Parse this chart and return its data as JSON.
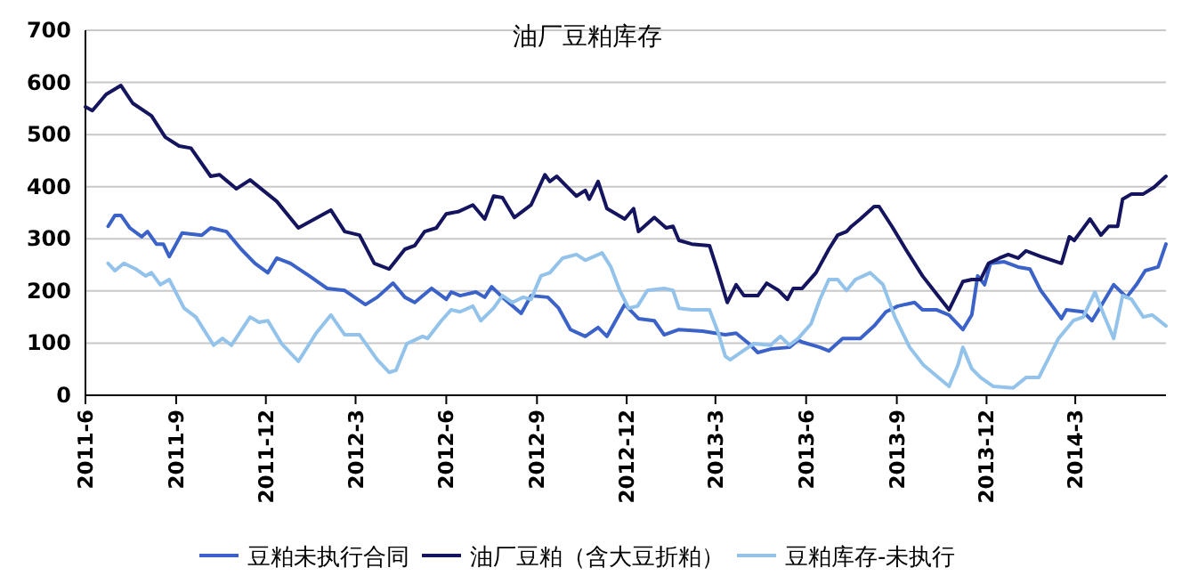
{
  "chart_data": {
    "type": "line",
    "title": "油厂豆粕库存",
    "grid": "y",
    "legend": "bottom",
    "xlim": [
      "2011-06-01",
      "2014-06-01"
    ],
    "xticks": [
      {
        "value": "2011-06",
        "label": "2011-6"
      },
      {
        "value": "2011-09",
        "label": "2011-9"
      },
      {
        "value": "2011-12",
        "label": "2011-12"
      },
      {
        "value": "2012-03",
        "label": "2012-3"
      },
      {
        "value": "2012-06",
        "label": "2012-6"
      },
      {
        "value": "2012-09",
        "label": "2012-9"
      },
      {
        "value": "2012-12",
        "label": "2012-12"
      },
      {
        "value": "2013-03",
        "label": "2013-3"
      },
      {
        "value": "2013-06",
        "label": "2013-6"
      },
      {
        "value": "2013-09",
        "label": "2013-9"
      },
      {
        "value": "2013-12",
        "label": "2013-12"
      },
      {
        "value": "2014-03",
        "label": "2014-3"
      }
    ],
    "ylim": [
      0,
      700
    ],
    "yticks": [
      0,
      100,
      200,
      300,
      400,
      500,
      600,
      700
    ],
    "series": [
      {
        "name": "豆粕未执行合同",
        "color": "#3b62c8",
        "x": [
          "2011-06-24",
          "2011-07-01",
          "2011-07-07",
          "2011-07-16",
          "2011-07-28",
          "2011-08-03",
          "2011-08-12",
          "2011-08-19",
          "2011-08-25",
          "2011-09-07",
          "2011-09-27",
          "2011-10-06",
          "2011-10-22",
          "2011-11-06",
          "2011-11-20",
          "2011-12-03",
          "2011-12-12",
          "2011-12-26",
          "2012-01-14",
          "2012-02-01",
          "2012-02-19",
          "2012-03-11",
          "2012-03-23",
          "2012-04-08",
          "2012-04-20",
          "2012-04-30",
          "2012-05-17",
          "2012-06-01",
          "2012-06-06",
          "2012-06-15",
          "2012-07-01",
          "2012-07-10",
          "2012-07-17",
          "2012-07-28",
          "2012-08-16",
          "2012-08-26",
          "2012-09-12",
          "2012-09-23",
          "2012-10-05",
          "2012-10-20",
          "2012-11-02",
          "2012-11-11",
          "2012-11-29",
          "2012-12-13",
          "2012-12-29",
          "2013-01-08",
          "2013-01-23",
          "2013-02-16",
          "2013-03-11",
          "2013-03-22",
          "2013-04-04",
          "2013-04-13",
          "2013-04-27",
          "2013-05-15",
          "2013-05-24",
          "2013-05-28",
          "2013-06-15",
          "2013-06-24",
          "2013-07-08",
          "2013-07-26",
          "2013-08-09",
          "2013-08-21",
          "2013-09-02",
          "2013-09-19",
          "2013-09-27",
          "2013-10-11",
          "2013-10-24",
          "2013-11-07",
          "2013-11-16",
          "2013-11-22",
          "2013-11-29",
          "2013-12-05",
          "2013-12-19",
          "2014-01-02",
          "2014-01-14",
          "2014-01-25",
          "2014-02-15",
          "2014-02-20",
          "2014-03-09",
          "2014-03-18",
          "2014-03-27",
          "2014-04-09",
          "2014-04-22",
          "2014-05-02",
          "2014-05-11",
          "2014-05-24",
          "2014-06-01"
        ],
        "values": [
          324,
          345,
          345,
          321,
          304,
          314,
          290,
          290,
          266,
          311,
          307,
          321,
          314,
          280,
          253,
          235,
          263,
          253,
          229,
          205,
          201,
          174,
          188,
          215,
          188,
          178,
          205,
          184,
          198,
          191,
          198,
          188,
          208,
          188,
          157,
          191,
          188,
          167,
          126,
          113,
          130,
          113,
          174,
          147,
          143,
          116,
          126,
          123,
          116,
          119,
          99,
          82,
          89,
          92,
          106,
          102,
          92,
          85,
          109,
          109,
          133,
          160,
          171,
          178,
          164,
          164,
          154,
          126,
          154,
          229,
          212,
          253,
          256,
          246,
          242,
          201,
          147,
          164,
          160,
          143,
          171,
          212,
          188,
          212,
          239,
          246,
          290
        ]
      },
      {
        "name": "油厂豆粕（含大豆折粕）",
        "color": "#14145f",
        "x": [
          "2011-06-01",
          "2011-06-08",
          "2011-06-22",
          "2011-07-07",
          "2011-07-19",
          "2011-08-07",
          "2011-08-21",
          "2011-09-04",
          "2011-09-16",
          "2011-10-06",
          "2011-10-15",
          "2011-11-01",
          "2011-11-15",
          "2011-12-12",
          "2012-01-03",
          "2012-02-05",
          "2012-02-19",
          "2012-03-05",
          "2012-03-20",
          "2012-04-04",
          "2012-04-20",
          "2012-04-30",
          "2012-05-10",
          "2012-05-22",
          "2012-06-01",
          "2012-06-13",
          "2012-06-28",
          "2012-07-10",
          "2012-07-19",
          "2012-07-28",
          "2012-08-09",
          "2012-08-21",
          "2012-08-26",
          "2012-09-09",
          "2012-09-14",
          "2012-09-21",
          "2012-10-02",
          "2012-10-11",
          "2012-10-20",
          "2012-10-24",
          "2012-11-02",
          "2012-11-11",
          "2012-11-29",
          "2012-12-08",
          "2012-12-13",
          "2012-12-29",
          "2013-01-10",
          "2013-01-17",
          "2013-01-23",
          "2013-02-05",
          "2013-02-23",
          "2013-03-02",
          "2013-03-13",
          "2013-03-22",
          "2013-03-30",
          "2013-04-13",
          "2013-04-22",
          "2013-05-04",
          "2013-05-13",
          "2013-05-19",
          "2013-05-28",
          "2013-06-11",
          "2013-06-24",
          "2013-07-03",
          "2013-07-12",
          "2013-07-17",
          "2013-07-26",
          "2013-08-09",
          "2013-08-14",
          "2013-08-27",
          "2013-09-10",
          "2013-09-27",
          "2013-10-11",
          "2013-10-24",
          "2013-11-07",
          "2013-11-16",
          "2013-11-25",
          "2013-12-03",
          "2013-12-14",
          "2013-12-23",
          "2014-01-02",
          "2014-01-10",
          "2014-01-25",
          "2014-02-15",
          "2014-02-23",
          "2014-02-28",
          "2014-03-16",
          "2014-03-27",
          "2014-04-04",
          "2014-04-13",
          "2014-04-18",
          "2014-04-27",
          "2014-05-09",
          "2014-05-20",
          "2014-06-01"
        ],
        "values": [
          553,
          546,
          577,
          594,
          560,
          536,
          495,
          478,
          474,
          420,
          423,
          396,
          413,
          372,
          321,
          355,
          314,
          307,
          253,
          242,
          280,
          287,
          314,
          321,
          348,
          352,
          365,
          338,
          382,
          379,
          341,
          358,
          365,
          423,
          410,
          420,
          399,
          382,
          393,
          376,
          410,
          358,
          338,
          358,
          314,
          341,
          321,
          324,
          297,
          290,
          287,
          246,
          178,
          212,
          191,
          191,
          215,
          201,
          184,
          205,
          205,
          235,
          280,
          307,
          314,
          324,
          338,
          362,
          362,
          324,
          280,
          229,
          195,
          164,
          218,
          222,
          222,
          253,
          263,
          270,
          263,
          277,
          266,
          253,
          304,
          297,
          338,
          307,
          324,
          324,
          376,
          386,
          386,
          399,
          420
        ]
      },
      {
        "name": "豆粕库存-未执行",
        "color": "#93c3ea",
        "x": [
          "2011-06-24",
          "2011-07-01",
          "2011-07-10",
          "2011-07-22",
          "2011-08-01",
          "2011-08-07",
          "2011-08-16",
          "2011-08-25",
          "2011-09-09",
          "2011-09-21",
          "2011-10-09",
          "2011-10-18",
          "2011-10-27",
          "2011-11-15",
          "2011-11-24",
          "2011-12-03",
          "2011-12-17",
          "2012-01-03",
          "2012-01-21",
          "2012-02-05",
          "2012-02-19",
          "2012-03-05",
          "2012-03-23",
          "2012-04-04",
          "2012-04-11",
          "2012-04-22",
          "2012-05-08",
          "2012-05-13",
          "2012-05-27",
          "2012-06-06",
          "2012-06-15",
          "2012-06-28",
          "2012-07-06",
          "2012-07-19",
          "2012-07-28",
          "2012-08-07",
          "2012-08-18",
          "2012-08-26",
          "2012-09-05",
          "2012-09-14",
          "2012-09-27",
          "2012-10-11",
          "2012-10-20",
          "2012-11-06",
          "2012-11-15",
          "2012-11-24",
          "2012-12-03",
          "2012-12-12",
          "2012-12-22",
          "2013-01-08",
          "2013-01-17",
          "2013-01-23",
          "2013-02-05",
          "2013-02-23",
          "2013-03-04",
          "2013-03-11",
          "2013-03-16",
          "2013-03-29",
          "2013-04-09",
          "2013-04-26",
          "2013-05-06",
          "2013-05-15",
          "2013-05-24",
          "2013-06-06",
          "2013-06-15",
          "2013-06-24",
          "2013-07-03",
          "2013-07-12",
          "2013-07-21",
          "2013-08-05",
          "2013-08-18",
          "2013-08-30",
          "2013-09-14",
          "2013-09-28",
          "2013-10-15",
          "2013-10-24",
          "2013-11-02",
          "2013-11-07",
          "2013-11-16",
          "2013-11-25",
          "2013-12-08",
          "2013-12-28",
          "2014-01-10",
          "2014-01-23",
          "2014-02-12",
          "2014-02-27",
          "2014-03-09",
          "2014-03-21",
          "2014-03-30",
          "2014-04-09",
          "2014-04-18",
          "2014-04-27",
          "2014-05-09",
          "2014-05-18",
          "2014-06-01"
        ],
        "values": [
          253,
          239,
          253,
          242,
          229,
          235,
          212,
          222,
          167,
          150,
          96,
          109,
          96,
          150,
          140,
          143,
          99,
          65,
          119,
          154,
          116,
          116,
          68,
          44,
          48,
          99,
          113,
          109,
          143,
          164,
          160,
          171,
          143,
          167,
          191,
          178,
          188,
          184,
          229,
          235,
          263,
          270,
          259,
          273,
          246,
          201,
          167,
          171,
          201,
          205,
          201,
          167,
          164,
          164,
          119,
          75,
          68,
          85,
          99,
          96,
          113,
          96,
          109,
          137,
          184,
          222,
          222,
          201,
          222,
          235,
          212,
          150,
          92,
          58,
          31,
          17,
          58,
          92,
          51,
          34,
          17,
          14,
          34,
          34,
          109,
          143,
          150,
          198,
          154,
          109,
          191,
          184,
          150,
          154,
          133
        ]
      }
    ]
  }
}
